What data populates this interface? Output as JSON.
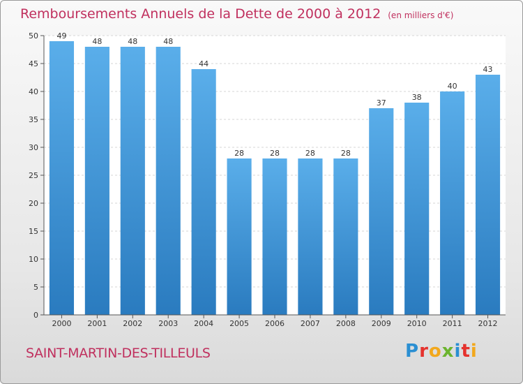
{
  "header": {
    "title": "Remboursements Annuels de la Dette de 2000 à 2012",
    "unit": "(en milliers d'€)"
  },
  "footer": {
    "commune": "SAINT-MARTIN-DES-TILLEULS",
    "logo_letters": [
      "P",
      "r",
      "o",
      "x",
      "i",
      "t",
      "i"
    ]
  },
  "chart_data": {
    "type": "bar",
    "title": "Remboursements Annuels de la Dette de 2000 à 2012",
    "xlabel": "",
    "ylabel": "",
    "categories": [
      "2000",
      "2001",
      "2002",
      "2003",
      "2004",
      "2005",
      "2006",
      "2007",
      "2008",
      "2009",
      "2010",
      "2011",
      "2012"
    ],
    "values": [
      49,
      48,
      48,
      48,
      44,
      28,
      28,
      28,
      28,
      37,
      38,
      40,
      43
    ],
    "ylim": [
      0,
      50
    ],
    "yticks": [
      0,
      5,
      10,
      15,
      20,
      25,
      30,
      35,
      40,
      45,
      50
    ],
    "grid": true,
    "bar_color_top": "#5aaeea",
    "bar_color_bottom": "#2a7bbf"
  }
}
